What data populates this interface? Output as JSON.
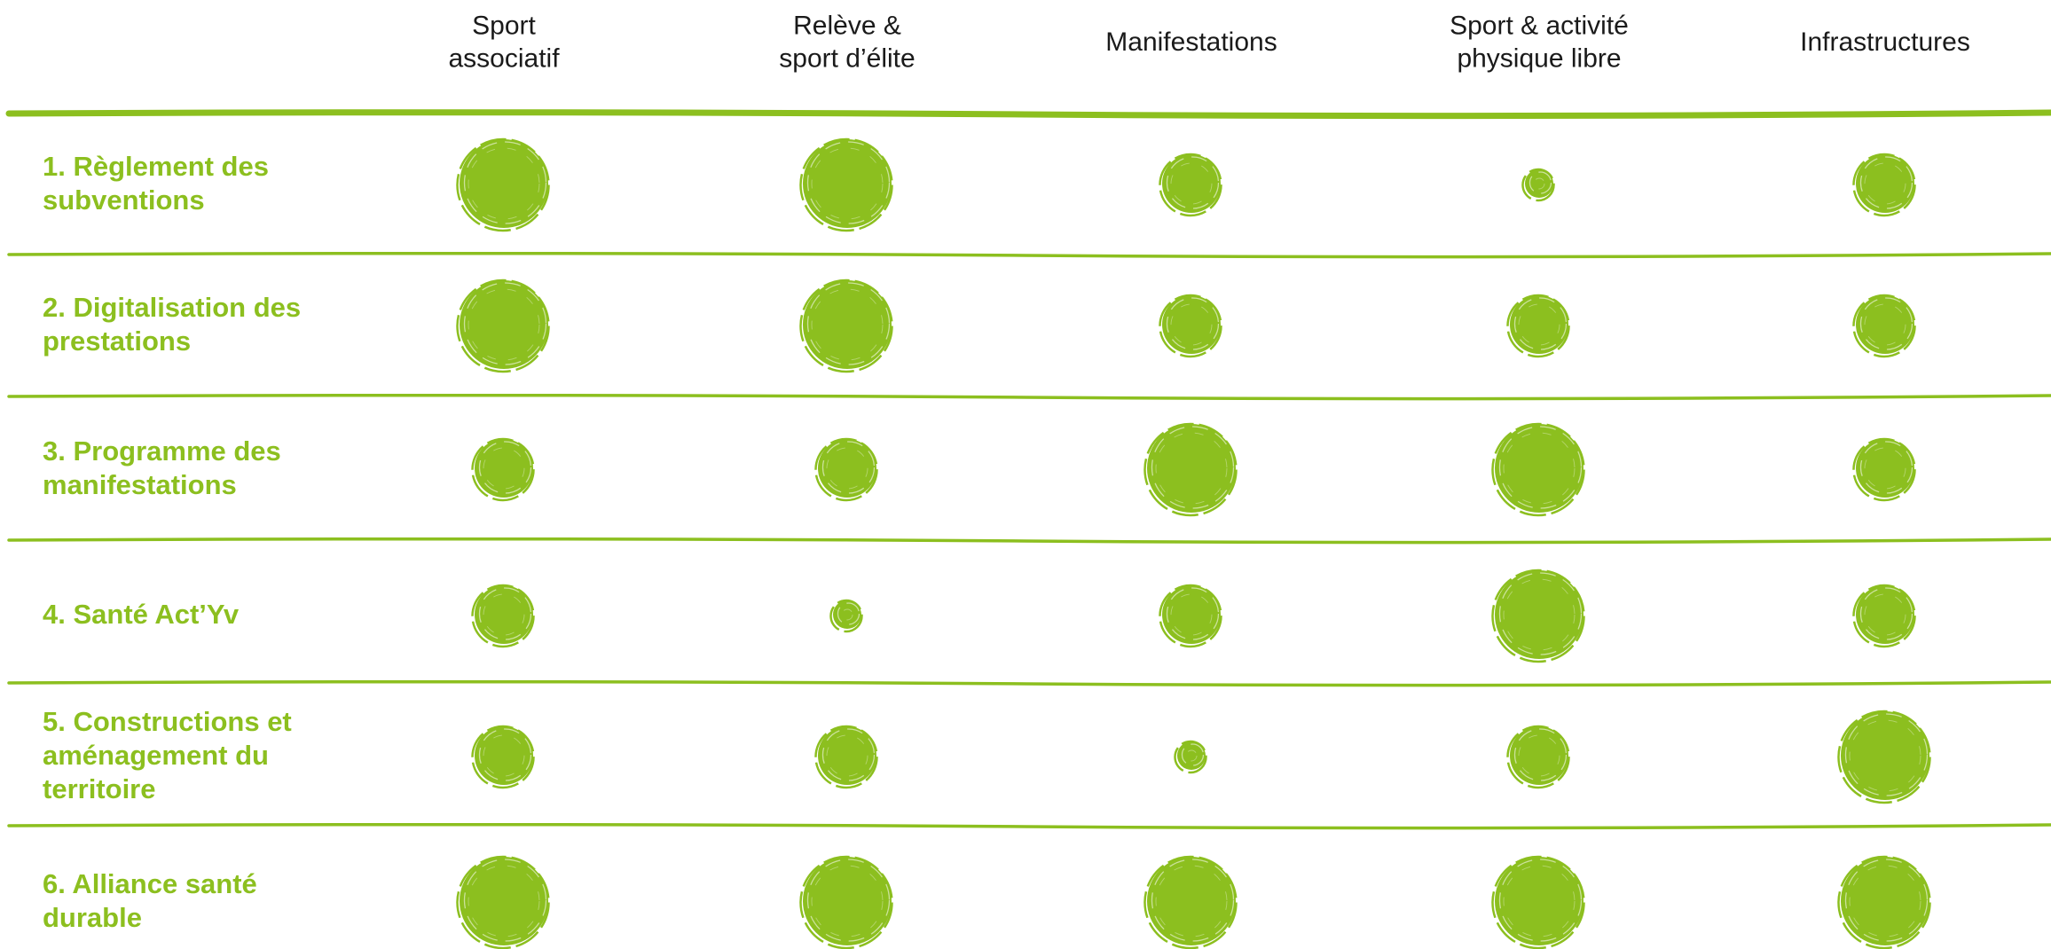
{
  "chart_data": {
    "type": "bubble-matrix",
    "columns": [
      {
        "lines": [
          "Sport",
          "associatif"
        ]
      },
      {
        "lines": [
          "Relève &",
          "sport d’élite"
        ]
      },
      {
        "lines": [
          "Manifestations"
        ]
      },
      {
        "lines": [
          "Sport & activité",
          "physique libre"
        ]
      },
      {
        "lines": [
          "Infrastructures"
        ]
      }
    ],
    "rows": [
      {
        "lines": [
          "1. Règlement des",
          "subventions"
        ],
        "values": [
          5,
          5,
          3,
          1,
          3
        ]
      },
      {
        "lines": [
          "2. Digitalisation des",
          "prestations"
        ],
        "values": [
          5,
          5,
          3,
          3,
          3
        ]
      },
      {
        "lines": [
          "3. Programme des",
          "manifestations"
        ],
        "values": [
          3,
          3,
          5,
          5,
          3
        ]
      },
      {
        "lines": [
          "4. Santé Act’Yv"
        ],
        "values": [
          3,
          1,
          3,
          5,
          3
        ]
      },
      {
        "lines": [
          "5. Constructions et",
          "aménagement du",
          "territoire"
        ],
        "values": [
          3,
          3,
          1,
          3,
          5
        ]
      },
      {
        "lines": [
          "6. Alliance santé",
          "durable"
        ],
        "values": [
          5,
          5,
          5,
          5,
          5
        ]
      }
    ],
    "colors": {
      "accent": "#8cbf1f",
      "header_text": "#1a1a1a"
    }
  }
}
